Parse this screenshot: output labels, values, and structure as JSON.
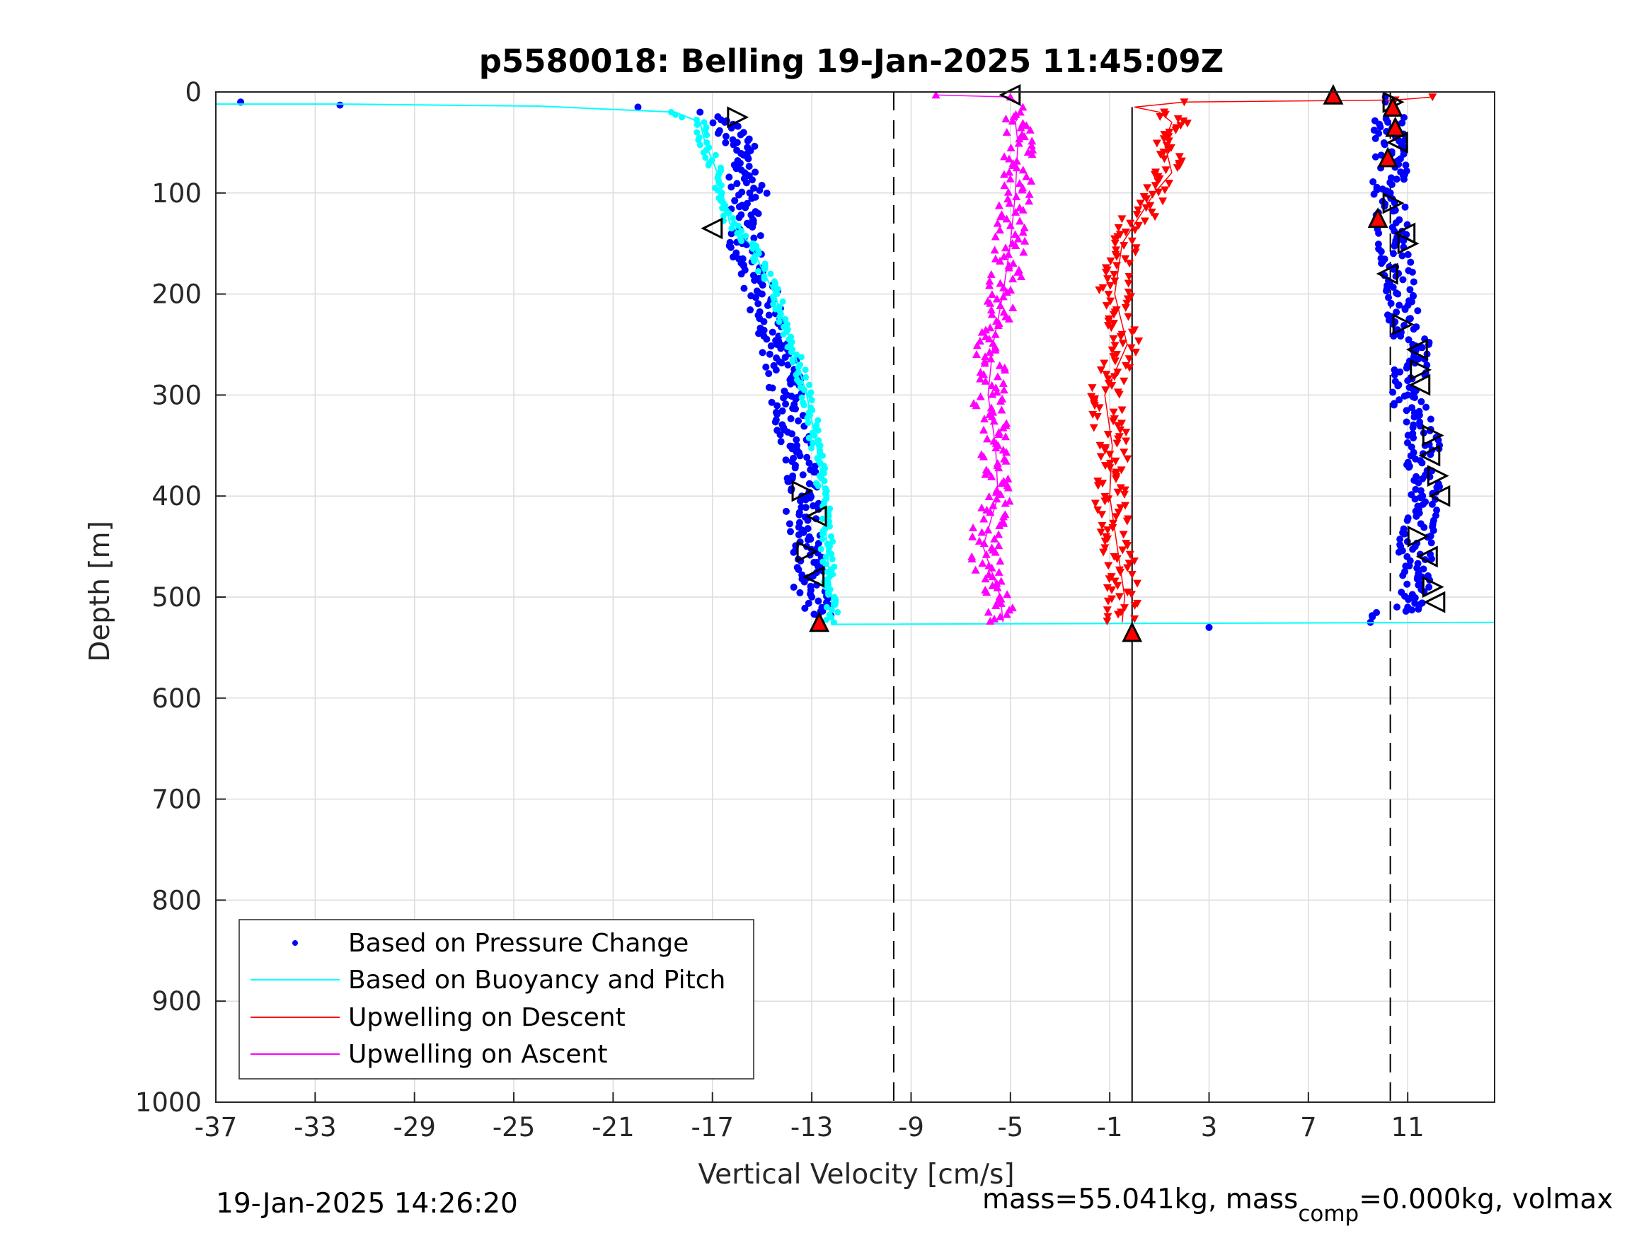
{
  "chart_data": {
    "type": "scatter",
    "title": "p5580018: Belling 19-Jan-2025 11:45:09Z",
    "xlabel": "Vertical Velocity [cm/s]",
    "ylabel": "Depth [m]",
    "xlim": [
      -37,
      14.5
    ],
    "ylim": [
      0,
      1000
    ],
    "y_reversed": true,
    "grid": true,
    "x_ticks": [
      -37,
      -33,
      -29,
      -25,
      -21,
      -17,
      -13,
      -9,
      -5,
      -1,
      3,
      7,
      11
    ],
    "x_tick_labels": [
      "-37",
      "-33",
      "-29",
      "-25",
      "-21",
      "-17",
      "-13",
      "-9",
      "-5",
      "-1",
      "3",
      "7",
      "11"
    ],
    "y_ticks": [
      0,
      100,
      200,
      300,
      400,
      500,
      600,
      700,
      800,
      900,
      1000
    ],
    "y_tick_labels": [
      "0",
      "100",
      "200",
      "300",
      "400",
      "500",
      "600",
      "700",
      "800",
      "900",
      "1000"
    ],
    "legend_position": "bottom-left",
    "legend": [
      {
        "label": "Based on Pressure Change",
        "color": "#0000ff",
        "style": "dot"
      },
      {
        "label": "Based on Buoyancy and Pitch",
        "color": "#00ffff",
        "style": "line"
      },
      {
        "label": "Upwelling on Descent",
        "color": "#ff0000",
        "style": "line"
      },
      {
        "label": "Upwelling on Ascent",
        "color": "#ff00ff",
        "style": "line"
      }
    ],
    "reference_lines": {
      "dashed_x": [
        -9.7,
        10.3
      ],
      "solid_x": [
        -0.1
      ]
    },
    "series": [
      {
        "name": "Based on Pressure Change",
        "color": "#0000ff",
        "marker": "dot",
        "segments": [
          {
            "note": "descent",
            "depth": [
              10,
              13,
              15,
              20,
              30,
              50,
              80,
              100,
              130,
              150,
              200,
              250,
              300,
              350,
              400,
              450,
              500,
              525
            ],
            "velocity": [
              -36,
              -32,
              -20,
              -17.5,
              -16.5,
              -16,
              -15.7,
              -15.5,
              -15.6,
              -15.8,
              -15,
              -14.4,
              -14,
              -13.6,
              -13.4,
              -13.2,
              -13,
              -12.7
            ]
          },
          {
            "note": "ascent",
            "depth": [
              530,
              525,
              510,
              480,
              450,
              400,
              350,
              300,
              250,
              200,
              150,
              100,
              60,
              30,
              10,
              5
            ],
            "velocity": [
              3,
              9.5,
              11,
              11.4,
              11.3,
              11.6,
              11.7,
              11.0,
              11.2,
              10.6,
              10.5,
              10.3,
              10.3,
              10.2,
              10.1,
              10.1
            ]
          }
        ]
      },
      {
        "name": "Based on Buoyancy and Pitch",
        "color": "#00ffff",
        "marker": "line",
        "depth": [
          12,
          12,
          14,
          20,
          30,
          50,
          80,
          100,
          130,
          150,
          200,
          250,
          300,
          350,
          400,
          450,
          500,
          527,
          525,
          5
        ],
        "velocity": [
          -37,
          -32,
          -24,
          -18.5,
          -17.5,
          -17.3,
          -16.8,
          -16.6,
          -16.3,
          -15.5,
          -14.5,
          -13.8,
          -13.2,
          -12.8,
          -12.5,
          -12.4,
          -12.2,
          -12.2,
          14.5,
          14.5
        ]
      },
      {
        "name": "Upwelling on Descent",
        "color": "#ff0000",
        "marker": "triangle-down",
        "depth": [
          5,
          8,
          10,
          15,
          20,
          30,
          50,
          80,
          100,
          150,
          200,
          250,
          300,
          350,
          400,
          450,
          500,
          525
        ],
        "velocity": [
          12,
          10.5,
          2,
          0,
          1,
          1.5,
          1.2,
          1.5,
          0.8,
          -0.5,
          -0.8,
          -0.3,
          -1.2,
          -0.9,
          -1.0,
          -0.7,
          -0.4,
          -0.5
        ]
      },
      {
        "name": "Upwelling on Ascent",
        "color": "#ff00ff",
        "marker": "triangle-up",
        "depth": [
          3,
          5,
          15,
          30,
          50,
          100,
          150,
          200,
          250,
          300,
          350,
          400,
          450,
          500,
          525
        ],
        "velocity": [
          -8,
          -5,
          -4.5,
          -4.8,
          -4.7,
          -4.8,
          -5.0,
          -5.3,
          -5.7,
          -5.9,
          -5.6,
          -5.5,
          -6.1,
          -5.4,
          -5.3
        ]
      }
    ],
    "markers": {
      "open_triangles_descent": {
        "depth": [
          25,
          135,
          395,
          420,
          455,
          480
        ],
        "velocity": [
          -16,
          -17,
          -13.4,
          -12.8,
          -13.2,
          -12.9
        ]
      },
      "open_triangles_ascent": {
        "depth": [
          10,
          50,
          110,
          140,
          150,
          180,
          230,
          255,
          275,
          290,
          340,
          360,
          380,
          400,
          440,
          460,
          490,
          505
        ],
        "velocity": [
          10.4,
          10.6,
          10.4,
          10.9,
          11.0,
          10.2,
          10.8,
          11.4,
          11.5,
          11.5,
          12.0,
          11.9,
          12.2,
          12.3,
          11.4,
          11.8,
          12.0,
          12.1
        ]
      },
      "red_filled_triangles": {
        "depth": [
          3,
          15,
          35,
          65,
          125,
          525,
          535
        ],
        "velocity": [
          8,
          10.4,
          10.5,
          10.2,
          9.8,
          -12.7,
          -0.1
        ]
      }
    }
  },
  "footer": {
    "timestamp": "19-Jan-2025 14:26:20",
    "stats_prefix": "mass=55.041kg, mass",
    "stats_sub": "comp",
    "stats_suffix": "=0.000kg, volmax"
  }
}
